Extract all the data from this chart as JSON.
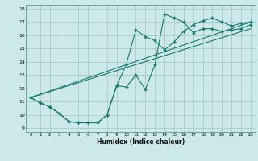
{
  "xlabel": "Humidex (Indice chaleur)",
  "xlim": [
    -0.5,
    23.5
  ],
  "ylim": [
    8.7,
    18.3
  ],
  "yticks": [
    9,
    10,
    11,
    12,
    13,
    14,
    15,
    16,
    17,
    18
  ],
  "xticks": [
    0,
    1,
    2,
    3,
    4,
    5,
    6,
    7,
    8,
    9,
    10,
    11,
    12,
    13,
    14,
    15,
    16,
    17,
    18,
    19,
    20,
    21,
    22,
    23
  ],
  "bg_color": "#cce8e8",
  "line_color": "#1a7a6e",
  "grid_color": "#aacccc",
  "line1_x": [
    0,
    1,
    2,
    3,
    4,
    5,
    6,
    7,
    8,
    9,
    10,
    11,
    12,
    13,
    14,
    15,
    16,
    17,
    18,
    19,
    20,
    21,
    22,
    23
  ],
  "line1_y": [
    11.3,
    10.9,
    10.6,
    10.1,
    9.5,
    9.4,
    9.4,
    9.4,
    10.0,
    12.2,
    12.1,
    13.0,
    11.9,
    13.8,
    17.6,
    17.3,
    17.0,
    16.2,
    16.5,
    16.5,
    16.3,
    16.4,
    16.5,
    16.8
  ],
  "line2_x": [
    0,
    1,
    2,
    3,
    4,
    5,
    6,
    7,
    8,
    9,
    10,
    11,
    12,
    13,
    14,
    15,
    16,
    17,
    18,
    19,
    20,
    21,
    22,
    23
  ],
  "line2_y": [
    11.3,
    10.9,
    10.6,
    10.1,
    9.5,
    9.4,
    9.4,
    9.4,
    10.0,
    12.2,
    13.8,
    16.4,
    15.9,
    15.6,
    14.9,
    15.5,
    16.3,
    16.8,
    17.1,
    17.3,
    17.0,
    16.7,
    16.9,
    17.0
  ],
  "line3_x": [
    0,
    23
  ],
  "line3_y": [
    11.3,
    17.0
  ],
  "line4_x": [
    0,
    23
  ],
  "line4_y": [
    11.3,
    16.5
  ]
}
